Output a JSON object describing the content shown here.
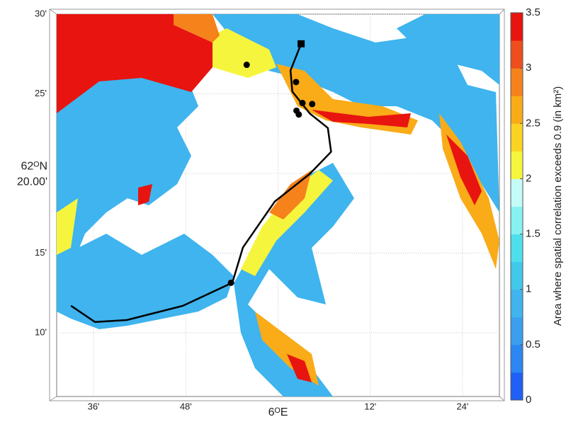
{
  "map": {
    "xlim": [
      5.52,
      6.48
    ],
    "ylim": [
      62.1,
      62.5
    ],
    "xticks": [
      {
        "value": 5.6,
        "label": "36'"
      },
      {
        "value": 5.8,
        "label": "48'"
      },
      {
        "value": 6.0,
        "label": "6ᴼE"
      },
      {
        "value": 6.2,
        "label": "12'"
      },
      {
        "value": 6.4,
        "label": "24'"
      }
    ],
    "yticks": [
      {
        "value": 62.5,
        "label": "30'"
      },
      {
        "value": 62.4167,
        "label": "25'"
      },
      {
        "value": 62.3333,
        "label": [
          "62ᴼN",
          "20.00'"
        ]
      },
      {
        "value": 62.25,
        "label": "15'"
      },
      {
        "value": 62.1667,
        "label": "10'"
      }
    ],
    "grid": true,
    "track": {
      "color": "#000000",
      "x": [
        5.551,
        5.603,
        5.672,
        5.794,
        5.901,
        5.924,
        5.993,
        6.069,
        6.115,
        6.108,
        6.069,
        6.031,
        6.027,
        6.05
      ],
      "y": [
        62.195,
        62.178,
        62.18,
        62.195,
        62.219,
        62.256,
        62.304,
        62.333,
        62.356,
        62.381,
        62.396,
        62.419,
        62.441,
        62.469
      ]
    },
    "stations": {
      "x": [
        5.932,
        6.039,
        6.053,
        6.074,
        6.04,
        6.045,
        5.898
      ],
      "y": [
        62.447,
        62.429,
        62.407,
        62.406,
        62.399,
        62.395,
        62.219
      ]
    },
    "origin": {
      "x": 6.05,
      "y": 62.469
    },
    "colorbar": {
      "label": "Area where spatial correlation exceeds 0.9 (in km²)",
      "lim": [
        0,
        3.5
      ],
      "ticks": [
        0,
        0.5,
        1,
        1.5,
        2,
        2.5,
        3,
        3.5
      ],
      "colors": [
        "#2060f6",
        "#2c87f2",
        "#3a9fee",
        "#3fb4ee",
        "#41c8ea",
        "#4fdfec",
        "#86f2f2",
        "#c4fbf8",
        "#f5f53e",
        "#fbd323",
        "#f9ab18",
        "#f6821c",
        "#ee4e1d",
        "#e8140f"
      ]
    }
  }
}
